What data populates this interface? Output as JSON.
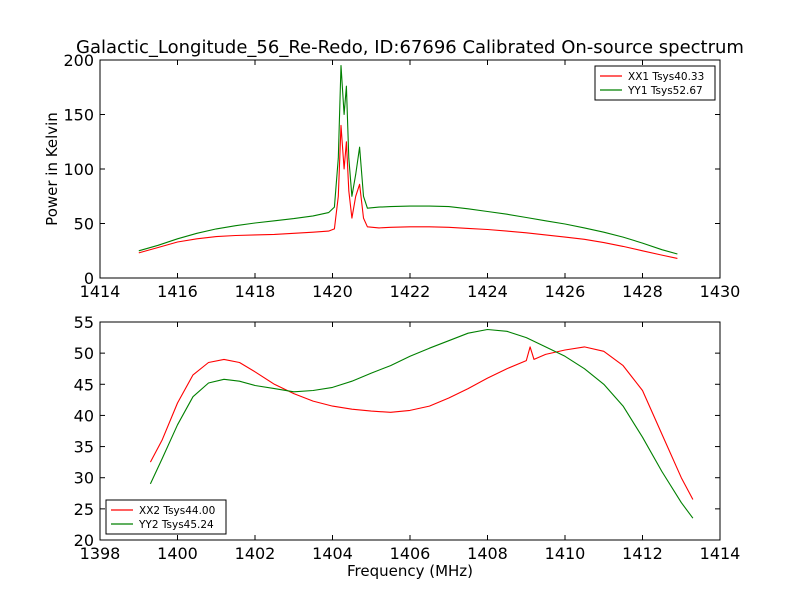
{
  "title": "Galactic_Longitude_56_Re-Redo, ID:67696 Calibrated On-source spectrum",
  "colors": {
    "xx": "#ff0000",
    "yy": "#008000"
  },
  "chart_data": [
    {
      "type": "line",
      "ylabel": "Power in Kelvin",
      "xlabel": "",
      "xlim": [
        1414,
        1430
      ],
      "ylim": [
        0,
        200
      ],
      "xticks": [
        "1414",
        "1416",
        "1418",
        "1420",
        "1422",
        "1424",
        "1426",
        "1428",
        "1430"
      ],
      "yticks": [
        "0",
        "50",
        "100",
        "150",
        "200"
      ],
      "legend_position": "top-right",
      "grid": false,
      "series": [
        {
          "name": "XX1 Tsys40.33",
          "color": "#ff0000",
          "x": [
            1415.0,
            1415.5,
            1416.0,
            1416.5,
            1417.0,
            1417.5,
            1418.0,
            1418.5,
            1419.0,
            1419.5,
            1419.9,
            1420.05,
            1420.15,
            1420.22,
            1420.3,
            1420.36,
            1420.42,
            1420.5,
            1420.6,
            1420.7,
            1420.8,
            1420.9,
            1421.2,
            1421.5,
            1422.0,
            1422.5,
            1423.0,
            1423.5,
            1424.0,
            1424.5,
            1425.0,
            1425.5,
            1426.0,
            1426.5,
            1427.0,
            1427.5,
            1428.0,
            1428.5,
            1428.9
          ],
          "y": [
            23,
            28,
            33,
            36,
            38,
            39,
            39.5,
            40,
            41,
            42,
            43,
            45,
            75,
            140,
            100,
            125,
            80,
            55,
            75,
            86,
            55,
            47,
            46,
            46.5,
            47,
            47,
            46.5,
            45.5,
            44.5,
            43,
            41.5,
            39.5,
            37.5,
            35.5,
            32.5,
            29,
            25,
            21,
            18
          ]
        },
        {
          "name": "YY1 Tsys52.67",
          "color": "#008000",
          "x": [
            1415.0,
            1415.5,
            1416.0,
            1416.5,
            1417.0,
            1417.5,
            1418.0,
            1418.5,
            1419.0,
            1419.5,
            1419.9,
            1420.05,
            1420.15,
            1420.22,
            1420.3,
            1420.36,
            1420.42,
            1420.5,
            1420.6,
            1420.7,
            1420.8,
            1420.9,
            1421.2,
            1421.5,
            1422.0,
            1422.5,
            1423.0,
            1423.5,
            1424.0,
            1424.5,
            1425.0,
            1425.5,
            1426.0,
            1426.5,
            1427.0,
            1427.5,
            1428.0,
            1428.5,
            1428.9
          ],
          "y": [
            25,
            30,
            36,
            41,
            45,
            48,
            50.5,
            52.5,
            54.5,
            57,
            60,
            65,
            110,
            195,
            150,
            176,
            110,
            75,
            95,
            120,
            75,
            64,
            65,
            65.5,
            66,
            66,
            65.5,
            63.5,
            61,
            58.5,
            55.5,
            52.5,
            49.5,
            46,
            42,
            37.5,
            32,
            26,
            22
          ]
        }
      ]
    },
    {
      "type": "line",
      "ylabel": "",
      "xlabel": "Frequency (MHz)",
      "xlim": [
        1398,
        1414
      ],
      "ylim": [
        20,
        55
      ],
      "xticks": [
        "1398",
        "1400",
        "1402",
        "1404",
        "1406",
        "1408",
        "1410",
        "1412",
        "1414"
      ],
      "yticks": [
        "20",
        "25",
        "30",
        "35",
        "40",
        "45",
        "50",
        "55"
      ],
      "legend_position": "bottom-left",
      "grid": false,
      "series": [
        {
          "name": "XX2 Tsys44.00",
          "color": "#ff0000",
          "x": [
            1399.3,
            1399.6,
            1400.0,
            1400.4,
            1400.8,
            1401.2,
            1401.6,
            1402.0,
            1402.5,
            1403.0,
            1403.5,
            1404.0,
            1404.5,
            1405.0,
            1405.5,
            1406.0,
            1406.5,
            1407.0,
            1407.5,
            1408.0,
            1408.5,
            1409.0,
            1409.1,
            1409.2,
            1409.5,
            1410.0,
            1410.5,
            1411.0,
            1411.5,
            1412.0,
            1412.5,
            1413.0,
            1413.3
          ],
          "y": [
            32.5,
            36,
            42,
            46.5,
            48.5,
            49,
            48.5,
            47,
            45,
            43.5,
            42.3,
            41.5,
            41,
            40.7,
            40.5,
            40.8,
            41.5,
            42.8,
            44.3,
            46,
            47.5,
            48.8,
            51,
            49,
            49.8,
            50.5,
            51,
            50.3,
            48,
            44,
            37,
            30,
            26.5
          ]
        },
        {
          "name": "YY2 Tsys45.24",
          "color": "#008000",
          "x": [
            1399.3,
            1399.6,
            1400.0,
            1400.4,
            1400.8,
            1401.2,
            1401.6,
            1402.0,
            1402.5,
            1403.0,
            1403.5,
            1404.0,
            1404.5,
            1405.0,
            1405.5,
            1406.0,
            1406.5,
            1407.0,
            1407.5,
            1408.0,
            1408.5,
            1409.0,
            1409.5,
            1410.0,
            1410.5,
            1411.0,
            1411.5,
            1412.0,
            1412.5,
            1413.0,
            1413.3
          ],
          "y": [
            29,
            33,
            38.5,
            43,
            45.2,
            45.8,
            45.5,
            44.8,
            44.3,
            43.8,
            44,
            44.5,
            45.5,
            46.8,
            48,
            49.5,
            50.8,
            52,
            53.2,
            53.8,
            53.5,
            52.5,
            51,
            49.5,
            47.5,
            45,
            41.5,
            36.5,
            31,
            26,
            23.5
          ]
        }
      ]
    }
  ]
}
